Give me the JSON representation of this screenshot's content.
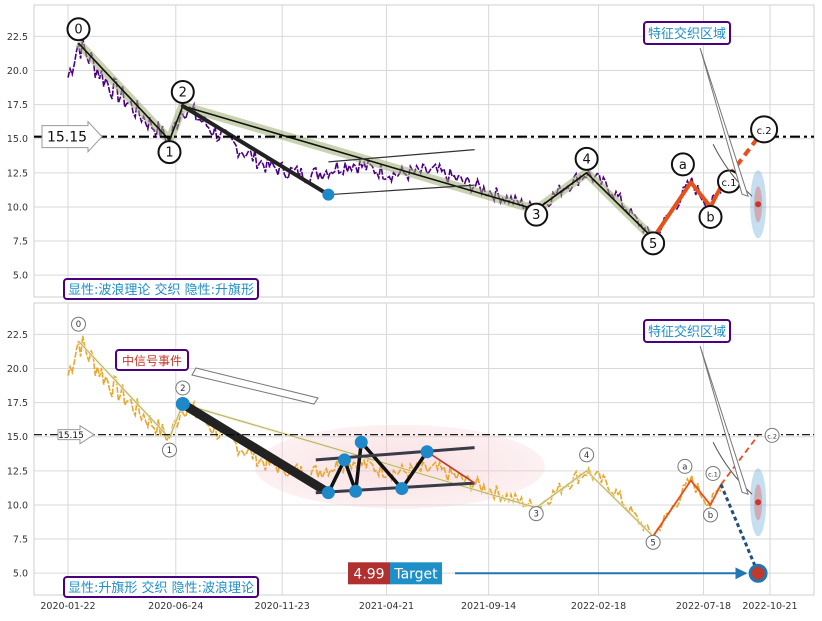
{
  "chart_data": [
    {
      "type": "line",
      "panel": "top",
      "y_ticks": [
        "5.0",
        "7.5",
        "10.0",
        "12.5",
        "15.0",
        "17.5",
        "20.0",
        "22.5"
      ],
      "ylim": [
        3.4,
        24.8
      ],
      "grid": true,
      "hline": {
        "value": 15.15,
        "label": "15.15"
      },
      "price_color": "#4b0082",
      "wave_labels": [
        {
          "label": "0",
          "date": "2020-02-06",
          "value": 22.0
        },
        {
          "label": "1",
          "date": "2020-06-15",
          "value": 14.9
        },
        {
          "label": "2",
          "date": "2020-07-04",
          "value": 17.4
        },
        {
          "label": "3",
          "date": "2021-11-21",
          "value": 9.8
        },
        {
          "label": "4",
          "date": "2022-02-01",
          "value": 12.5
        },
        {
          "label": "5",
          "date": "2022-05-07",
          "value": 7.7
        },
        {
          "label": "a",
          "date": "2022-06-30",
          "value": 11.8
        },
        {
          "label": "b",
          "date": "2022-07-28",
          "value": 10.0
        },
        {
          "label": "c.1",
          "date": "2022-08-12",
          "value": 11.5
        },
        {
          "label": "c.2",
          "date": "2022-10-04",
          "value": 15.1
        }
      ],
      "annotations": {
        "region_label": "特征交织区域",
        "caption": "显性:波浪理论 交织 隐性:升旗形"
      }
    },
    {
      "type": "line",
      "panel": "bottom",
      "x_ticks": [
        "2020-01-22",
        "2020-06-24",
        "2020-11-23",
        "2021-04-21",
        "2021-09-14",
        "2022-02-18",
        "2022-07-18",
        "2022-10-21"
      ],
      "y_ticks": [
        "5.0",
        "7.5",
        "10.0",
        "12.5",
        "15.0",
        "17.5",
        "20.0",
        "22.5"
      ],
      "ylim": [
        3.4,
        24.8
      ],
      "grid": true,
      "hline": {
        "value": 15.15,
        "label": "15.15"
      },
      "price_color": "#e8a830",
      "wave_labels": [
        "0",
        "1",
        "2",
        "3",
        "4",
        "5",
        "a",
        "b",
        "c.1",
        "c.2"
      ],
      "flag_points": [
        {
          "date": "2021-01-28",
          "value": 10.9
        },
        {
          "date": "2021-02-20",
          "value": 13.3
        },
        {
          "date": "2021-03-08",
          "value": 11.0
        },
        {
          "date": "2021-03-16",
          "value": 14.6
        },
        {
          "date": "2021-05-13",
          "value": 11.2
        },
        {
          "date": "2021-06-18",
          "value": 13.9
        }
      ],
      "target": {
        "value": 4.99,
        "date": "2022-10-04",
        "value_label": "4.99",
        "label": "Target"
      },
      "annotations": {
        "region_label": "特征交织区域",
        "event_label": "中信号事件",
        "caption": "显性:升旗形 交织 隐性:波浪理论"
      }
    }
  ]
}
